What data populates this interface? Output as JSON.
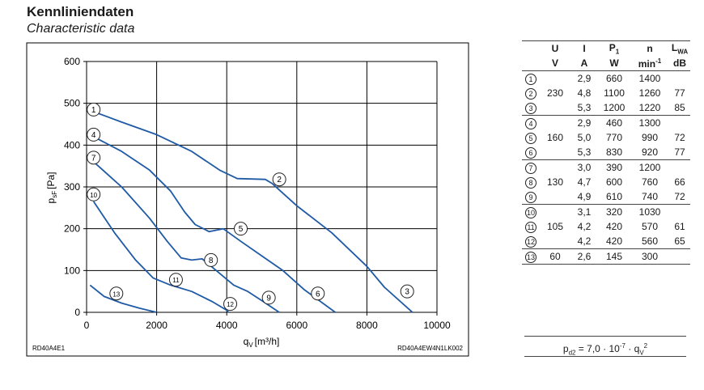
{
  "title": "Kennliniendaten",
  "subtitle": "Characteristic data",
  "chart_data": {
    "type": "line",
    "xlabel": "q",
    "xlabel_sub": "V",
    "xlabel_unit": "[m³/h]",
    "ylabel": "p",
    "ylabel_sub": "sF",
    "ylabel_unit": "[Pa]",
    "xlim": [
      0,
      10000
    ],
    "ylim": [
      0,
      600
    ],
    "xticks": [
      0,
      2000,
      4000,
      6000,
      8000,
      10000
    ],
    "yticks": [
      0,
      100,
      200,
      300,
      400,
      500,
      600
    ],
    "grid": true,
    "left_note": "RD40A4E1",
    "right_note": "RD40A4EW4N1LK002",
    "series": [
      {
        "name": "1-2-3",
        "points": [
          [
            200,
            480
          ],
          [
            1000,
            455
          ],
          [
            2000,
            425
          ],
          [
            3000,
            385
          ],
          [
            3800,
            340
          ],
          [
            4300,
            320
          ],
          [
            5100,
            318
          ],
          [
            5300,
            308
          ],
          [
            6000,
            255
          ],
          [
            7000,
            190
          ],
          [
            8000,
            110
          ],
          [
            8500,
            60
          ],
          [
            9300,
            0
          ]
        ]
      },
      {
        "name": "4-5-6",
        "points": [
          [
            200,
            420
          ],
          [
            1000,
            385
          ],
          [
            1800,
            340
          ],
          [
            2400,
            290
          ],
          [
            2800,
            240
          ],
          [
            3100,
            210
          ],
          [
            3500,
            193
          ],
          [
            3900,
            200
          ],
          [
            4400,
            170
          ],
          [
            5000,
            135
          ],
          [
            5600,
            100
          ],
          [
            6200,
            55
          ],
          [
            7100,
            0
          ]
        ]
      },
      {
        "name": "7-8-9",
        "points": [
          [
            200,
            360
          ],
          [
            1000,
            300
          ],
          [
            1800,
            225
          ],
          [
            2300,
            170
          ],
          [
            2700,
            130
          ],
          [
            3000,
            125
          ],
          [
            3300,
            128
          ],
          [
            3700,
            100
          ],
          [
            4200,
            65
          ],
          [
            4600,
            50
          ],
          [
            5000,
            28
          ],
          [
            5500,
            0
          ]
        ]
      },
      {
        "name": "10-11-12",
        "points": [
          [
            200,
            265
          ],
          [
            800,
            190
          ],
          [
            1400,
            125
          ],
          [
            1900,
            82
          ],
          [
            2400,
            65
          ],
          [
            3000,
            50
          ],
          [
            3600,
            25
          ],
          [
            4000,
            5
          ],
          [
            4050,
            0
          ]
        ]
      },
      {
        "name": "13",
        "points": [
          [
            100,
            65
          ],
          [
            500,
            38
          ],
          [
            1000,
            22
          ],
          [
            1500,
            10
          ],
          [
            2000,
            0
          ]
        ]
      }
    ],
    "markers": [
      {
        "label": "1",
        "x": 200,
        "y": 485
      },
      {
        "label": "2",
        "x": 5500,
        "y": 318
      },
      {
        "label": "3",
        "x": 9150,
        "y": 50
      },
      {
        "label": "4",
        "x": 200,
        "y": 425
      },
      {
        "label": "5",
        "x": 4400,
        "y": 200
      },
      {
        "label": "6",
        "x": 6600,
        "y": 45
      },
      {
        "label": "7",
        "x": 200,
        "y": 370
      },
      {
        "label": "8",
        "x": 3550,
        "y": 125
      },
      {
        "label": "9",
        "x": 5200,
        "y": 35
      },
      {
        "label": "10",
        "x": 200,
        "y": 282
      },
      {
        "label": "11",
        "x": 2550,
        "y": 78
      },
      {
        "label": "12",
        "x": 4100,
        "y": 20
      },
      {
        "label": "13",
        "x": 850,
        "y": 45
      }
    ]
  },
  "table": {
    "headers_top": [
      "",
      "U",
      "I",
      "P",
      "n",
      "L"
    ],
    "p_sub": "1",
    "l_sub": "WA",
    "headers_units": [
      "",
      "V",
      "A",
      "W",
      "min",
      "dB"
    ],
    "min_sup": "-1",
    "rows": [
      {
        "num": "1",
        "u": "",
        "i": "2,9",
        "p": "660",
        "n": "1400",
        "l": "",
        "end": false
      },
      {
        "num": "2",
        "u": "230",
        "i": "4,8",
        "p": "1100",
        "n": "1260",
        "l": "77",
        "end": false
      },
      {
        "num": "3",
        "u": "",
        "i": "5,3",
        "p": "1200",
        "n": "1220",
        "l": "85",
        "end": true
      },
      {
        "num": "4",
        "u": "",
        "i": "2,9",
        "p": "460",
        "n": "1300",
        "l": "",
        "end": false
      },
      {
        "num": "5",
        "u": "160",
        "i": "5,0",
        "p": "770",
        "n": "990",
        "l": "72",
        "end": false
      },
      {
        "num": "6",
        "u": "",
        "i": "5,3",
        "p": "830",
        "n": "920",
        "l": "77",
        "end": true
      },
      {
        "num": "7",
        "u": "",
        "i": "3,0",
        "p": "390",
        "n": "1200",
        "l": "",
        "end": false
      },
      {
        "num": "8",
        "u": "130",
        "i": "4,7",
        "p": "600",
        "n": "760",
        "l": "66",
        "end": false
      },
      {
        "num": "9",
        "u": "",
        "i": "4,9",
        "p": "610",
        "n": "740",
        "l": "72",
        "end": true
      },
      {
        "num": "10",
        "u": "",
        "i": "3,1",
        "p": "320",
        "n": "1030",
        "l": "",
        "end": false
      },
      {
        "num": "11",
        "u": "105",
        "i": "4,2",
        "p": "420",
        "n": "570",
        "l": "61",
        "end": false
      },
      {
        "num": "12",
        "u": "",
        "i": "4,2",
        "p": "420",
        "n": "560",
        "l": "65",
        "end": true
      },
      {
        "num": "13",
        "u": "60",
        "i": "2,6",
        "p": "145",
        "n": "300",
        "l": "",
        "end": true
      }
    ]
  },
  "formula": {
    "lhs": "p",
    "lhs_sub": "d2",
    "mid": " = 7,0 · 10",
    "exp": "-7",
    "mid2": " · q",
    "var_sub": "V",
    "pow": "2"
  },
  "colors": {
    "curve": "#1f5aa6",
    "grid": "#000000",
    "frame": "#000000"
  }
}
